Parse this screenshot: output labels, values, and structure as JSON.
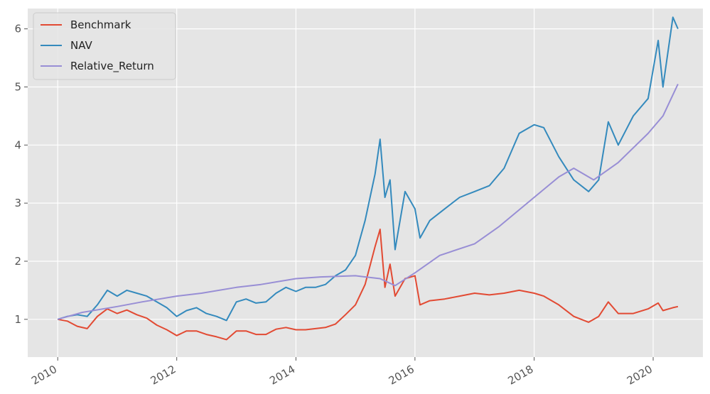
{
  "chart_data": {
    "type": "line",
    "title": "",
    "xlabel": "",
    "ylabel": "",
    "xlim": [
      "2009-07-01",
      "2020-11-01"
    ],
    "ylim": [
      0.35,
      6.35
    ],
    "y_ticks": [
      1,
      2,
      3,
      4,
      5,
      6
    ],
    "x_ticks": [
      {
        "date": "2010-01-01",
        "label": "2010"
      },
      {
        "date": "2012-01-01",
        "label": "2012"
      },
      {
        "date": "2014-01-01",
        "label": "2014"
      },
      {
        "date": "2016-01-01",
        "label": "2016"
      },
      {
        "date": "2018-01-01",
        "label": "2018"
      },
      {
        "date": "2020-01-01",
        "label": "2020"
      }
    ],
    "grid": true,
    "background": "#e5e5e5",
    "legend_position": "top-left",
    "series": [
      {
        "name": "Benchmark",
        "color": "#e24a33",
        "points": [
          [
            "2010-01-01",
            1.0
          ],
          [
            "2010-03-01",
            0.97
          ],
          [
            "2010-05-01",
            0.88
          ],
          [
            "2010-07-01",
            0.84
          ],
          [
            "2010-09-01",
            1.05
          ],
          [
            "2010-11-01",
            1.18
          ],
          [
            "2011-01-01",
            1.1
          ],
          [
            "2011-03-01",
            1.16
          ],
          [
            "2011-05-01",
            1.08
          ],
          [
            "2011-07-01",
            1.02
          ],
          [
            "2011-09-01",
            0.9
          ],
          [
            "2011-11-01",
            0.82
          ],
          [
            "2012-01-01",
            0.72
          ],
          [
            "2012-03-01",
            0.8
          ],
          [
            "2012-05-01",
            0.8
          ],
          [
            "2012-07-01",
            0.74
          ],
          [
            "2012-09-01",
            0.7
          ],
          [
            "2012-11-01",
            0.65
          ],
          [
            "2013-01-01",
            0.8
          ],
          [
            "2013-03-01",
            0.8
          ],
          [
            "2013-05-01",
            0.74
          ],
          [
            "2013-07-01",
            0.74
          ],
          [
            "2013-09-01",
            0.83
          ],
          [
            "2013-11-01",
            0.86
          ],
          [
            "2014-01-01",
            0.82
          ],
          [
            "2014-03-01",
            0.82
          ],
          [
            "2014-05-01",
            0.84
          ],
          [
            "2014-07-01",
            0.86
          ],
          [
            "2014-09-01",
            0.92
          ],
          [
            "2014-11-01",
            1.08
          ],
          [
            "2015-01-01",
            1.25
          ],
          [
            "2015-03-01",
            1.6
          ],
          [
            "2015-05-01",
            2.25
          ],
          [
            "2015-06-01",
            2.55
          ],
          [
            "2015-07-01",
            1.55
          ],
          [
            "2015-08-01",
            1.95
          ],
          [
            "2015-09-01",
            1.4
          ],
          [
            "2015-11-01",
            1.7
          ],
          [
            "2016-01-01",
            1.75
          ],
          [
            "2016-02-01",
            1.25
          ],
          [
            "2016-04-01",
            1.32
          ],
          [
            "2016-07-01",
            1.35
          ],
          [
            "2016-10-01",
            1.4
          ],
          [
            "2017-01-01",
            1.45
          ],
          [
            "2017-04-01",
            1.42
          ],
          [
            "2017-07-01",
            1.45
          ],
          [
            "2017-10-01",
            1.5
          ],
          [
            "2018-01-01",
            1.45
          ],
          [
            "2018-03-01",
            1.4
          ],
          [
            "2018-06-01",
            1.25
          ],
          [
            "2018-09-01",
            1.05
          ],
          [
            "2018-12-01",
            0.95
          ],
          [
            "2019-02-01",
            1.05
          ],
          [
            "2019-04-01",
            1.3
          ],
          [
            "2019-06-01",
            1.1
          ],
          [
            "2019-09-01",
            1.1
          ],
          [
            "2019-12-01",
            1.18
          ],
          [
            "2020-02-01",
            1.28
          ],
          [
            "2020-03-01",
            1.15
          ],
          [
            "2020-05-01",
            1.2
          ],
          [
            "2020-06-01",
            1.22
          ]
        ]
      },
      {
        "name": "NAV",
        "color": "#348abd",
        "points": [
          [
            "2010-01-01",
            1.0
          ],
          [
            "2010-03-01",
            1.05
          ],
          [
            "2010-05-01",
            1.08
          ],
          [
            "2010-07-01",
            1.05
          ],
          [
            "2010-09-01",
            1.25
          ],
          [
            "2010-11-01",
            1.5
          ],
          [
            "2011-01-01",
            1.4
          ],
          [
            "2011-03-01",
            1.5
          ],
          [
            "2011-05-01",
            1.45
          ],
          [
            "2011-07-01",
            1.4
          ],
          [
            "2011-09-01",
            1.3
          ],
          [
            "2011-11-01",
            1.2
          ],
          [
            "2012-01-01",
            1.05
          ],
          [
            "2012-03-01",
            1.15
          ],
          [
            "2012-05-01",
            1.2
          ],
          [
            "2012-07-01",
            1.1
          ],
          [
            "2012-09-01",
            1.05
          ],
          [
            "2012-11-01",
            0.98
          ],
          [
            "2013-01-01",
            1.3
          ],
          [
            "2013-03-01",
            1.35
          ],
          [
            "2013-05-01",
            1.28
          ],
          [
            "2013-07-01",
            1.3
          ],
          [
            "2013-09-01",
            1.45
          ],
          [
            "2013-11-01",
            1.55
          ],
          [
            "2014-01-01",
            1.48
          ],
          [
            "2014-03-01",
            1.55
          ],
          [
            "2014-05-01",
            1.55
          ],
          [
            "2014-07-01",
            1.6
          ],
          [
            "2014-09-01",
            1.75
          ],
          [
            "2014-11-01",
            1.85
          ],
          [
            "2015-01-01",
            2.1
          ],
          [
            "2015-03-01",
            2.7
          ],
          [
            "2015-05-01",
            3.5
          ],
          [
            "2015-06-01",
            4.1
          ],
          [
            "2015-07-01",
            3.1
          ],
          [
            "2015-08-01",
            3.4
          ],
          [
            "2015-09-01",
            2.2
          ],
          [
            "2015-11-01",
            3.2
          ],
          [
            "2016-01-01",
            2.9
          ],
          [
            "2016-02-01",
            2.4
          ],
          [
            "2016-04-01",
            2.7
          ],
          [
            "2016-07-01",
            2.9
          ],
          [
            "2016-10-01",
            3.1
          ],
          [
            "2017-01-01",
            3.2
          ],
          [
            "2017-04-01",
            3.3
          ],
          [
            "2017-07-01",
            3.6
          ],
          [
            "2017-10-01",
            4.2
          ],
          [
            "2018-01-01",
            4.35
          ],
          [
            "2018-03-01",
            4.3
          ],
          [
            "2018-06-01",
            3.8
          ],
          [
            "2018-09-01",
            3.4
          ],
          [
            "2018-12-01",
            3.2
          ],
          [
            "2019-02-01",
            3.4
          ],
          [
            "2019-04-01",
            4.4
          ],
          [
            "2019-06-01",
            4.0
          ],
          [
            "2019-09-01",
            4.5
          ],
          [
            "2019-12-01",
            4.8
          ],
          [
            "2020-02-01",
            5.8
          ],
          [
            "2020-03-01",
            5.0
          ],
          [
            "2020-05-01",
            6.2
          ],
          [
            "2020-06-01",
            6.0
          ]
        ]
      },
      {
        "name": "Relative_Return",
        "color": "#988ed5",
        "points": [
          [
            "2010-01-01",
            1.0
          ],
          [
            "2010-06-01",
            1.12
          ],
          [
            "2011-01-01",
            1.22
          ],
          [
            "2011-06-01",
            1.3
          ],
          [
            "2012-01-01",
            1.4
          ],
          [
            "2012-06-01",
            1.45
          ],
          [
            "2013-01-01",
            1.55
          ],
          [
            "2013-06-01",
            1.6
          ],
          [
            "2014-01-01",
            1.7
          ],
          [
            "2014-06-01",
            1.73
          ],
          [
            "2015-01-01",
            1.75
          ],
          [
            "2015-06-01",
            1.7
          ],
          [
            "2015-09-01",
            1.58
          ],
          [
            "2016-01-01",
            1.8
          ],
          [
            "2016-06-01",
            2.1
          ],
          [
            "2017-01-01",
            2.3
          ],
          [
            "2017-06-01",
            2.6
          ],
          [
            "2018-01-01",
            3.1
          ],
          [
            "2018-06-01",
            3.45
          ],
          [
            "2018-09-01",
            3.6
          ],
          [
            "2019-01-01",
            3.4
          ],
          [
            "2019-06-01",
            3.7
          ],
          [
            "2019-12-01",
            4.2
          ],
          [
            "2020-03-01",
            4.5
          ],
          [
            "2020-06-01",
            5.05
          ]
        ]
      }
    ]
  }
}
